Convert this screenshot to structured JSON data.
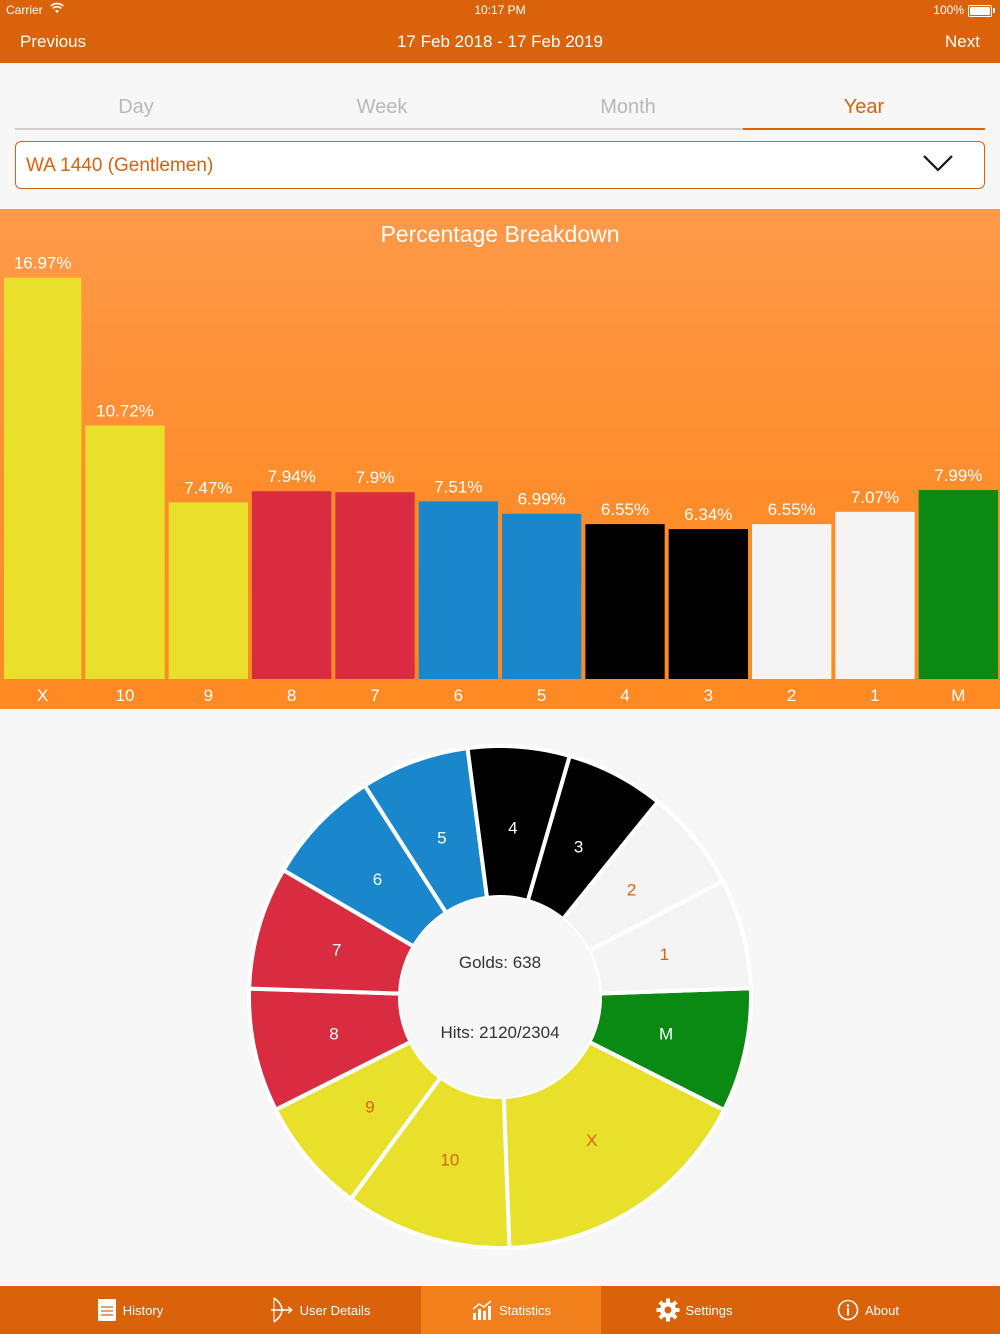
{
  "status_bar": {
    "carrier": "Carrier",
    "time": "10:17 PM",
    "battery": "100%"
  },
  "nav": {
    "previous": "Previous",
    "title": "17 Feb 2018 - 17 Feb 2019",
    "next": "Next"
  },
  "tabs": [
    {
      "label": "Day",
      "active": false
    },
    {
      "label": "Week",
      "active": false
    },
    {
      "label": "Month",
      "active": false
    },
    {
      "label": "Year",
      "active": true
    }
  ],
  "round_selector": {
    "value": "WA 1440 (Gentlemen)",
    "icon": "chevron-down-icon"
  },
  "chart_data": [
    {
      "type": "bar",
      "title": "Percentage Breakdown",
      "categories": [
        "X",
        "10",
        "9",
        "8",
        "7",
        "6",
        "5",
        "4",
        "3",
        "2",
        "1",
        "M"
      ],
      "values": [
        16.97,
        10.72,
        7.47,
        7.94,
        7.9,
        7.51,
        6.99,
        6.55,
        6.34,
        6.55,
        7.07,
        7.99
      ],
      "value_labels": [
        "16.97%",
        "10.72%",
        "7.47%",
        "7.94%",
        "7.9%",
        "7.51%",
        "6.99%",
        "6.55%",
        "6.34%",
        "6.55%",
        "7.07%",
        "7.99%"
      ],
      "colors": [
        "#e8e02a",
        "#e8e02a",
        "#e8e02a",
        "#d92c40",
        "#d92c40",
        "#1a86cc",
        "#1a86cc",
        "#000000",
        "#000000",
        "#f4f4f4",
        "#f4f4f4",
        "#0a8a12"
      ]
    },
    {
      "type": "pie",
      "categories": [
        "M",
        "X",
        "10",
        "9",
        "8",
        "7",
        "6",
        "5",
        "4",
        "3",
        "2",
        "1"
      ],
      "values": [
        7.99,
        16.97,
        10.72,
        7.47,
        7.94,
        7.9,
        7.51,
        6.99,
        6.55,
        6.34,
        6.55,
        7.07
      ],
      "colors": [
        "#0a8a12",
        "#e8e02a",
        "#e8e02a",
        "#e8e02a",
        "#d92c40",
        "#d92c40",
        "#1a86cc",
        "#1a86cc",
        "#000000",
        "#000000",
        "#f4f4f4",
        "#f4f4f4"
      ],
      "label_colors": [
        "#ffffff",
        "#d9620a",
        "#d9620a",
        "#d9620a",
        "#ffffff",
        "#ffffff",
        "#ffffff",
        "#ffffff",
        "#ffffff",
        "#ffffff",
        "#d9620a",
        "#d9620a"
      ],
      "center_text": [
        "Golds: 638",
        "Hits: 2120/2304"
      ]
    }
  ],
  "tabbar": [
    {
      "label": "History",
      "icon": "history-icon",
      "active": false
    },
    {
      "label": "User Details",
      "icon": "archer-icon",
      "active": false
    },
    {
      "label": "Statistics",
      "icon": "statistics-icon",
      "active": true
    },
    {
      "label": "Settings",
      "icon": "gear-icon",
      "active": false
    },
    {
      "label": "About",
      "icon": "info-icon",
      "active": false
    }
  ],
  "colors": {
    "brand": "#d9620a",
    "accent": "#f07f1c"
  }
}
